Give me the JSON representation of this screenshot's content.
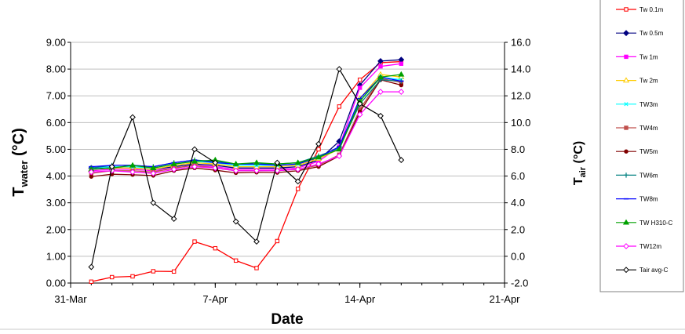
{
  "chart_data": {
    "type": "line",
    "xlabel": "Date",
    "ylabel_left": {
      "main": "T",
      "sub": "water",
      "rest": " (°C)"
    },
    "ylabel_right": {
      "main": "T",
      "sub": "air",
      "rest": " (°C)"
    },
    "x_ticks": [
      {
        "label": "31-Mar",
        "day": 0
      },
      {
        "label": "7-Apr",
        "day": 7
      },
      {
        "label": "14-Apr",
        "day": 14
      },
      {
        "label": "21-Apr",
        "day": 21
      }
    ],
    "xlim_days": [
      0,
      21
    ],
    "ylim_left": [
      0,
      9
    ],
    "yticks_left": [
      "0.00",
      "1.00",
      "2.00",
      "3.00",
      "4.00",
      "5.00",
      "6.00",
      "7.00",
      "8.00",
      "9.00"
    ],
    "ylim_right": [
      -2,
      16
    ],
    "yticks_right": [
      "-2.0",
      "0.0",
      "2.0",
      "4.0",
      "6.0",
      "8.0",
      "10.0",
      "12.0",
      "14.0",
      "16.0"
    ],
    "grid": "horizontal major gridlines",
    "legend_position": "right",
    "series": [
      {
        "name": "Tw 0.1m",
        "color": "#ff0000",
        "marker": "square-open",
        "axis": "left",
        "values": [
          0.05,
          0.22,
          0.25,
          0.44,
          0.43,
          1.55,
          1.3,
          0.84,
          0.56,
          1.57,
          3.52,
          5.0,
          6.6,
          7.6,
          8.24,
          8.28
        ]
      },
      {
        "name": "Tw 0.5m",
        "color": "#000080",
        "marker": "diamond",
        "axis": "left",
        "values": [
          4.3,
          4.3,
          4.3,
          4.25,
          4.35,
          4.45,
          4.4,
          4.3,
          4.3,
          4.3,
          4.35,
          4.6,
          5.3,
          7.4,
          8.3,
          8.35
        ]
      },
      {
        "name": "Tw 1m",
        "color": "#ff00ff",
        "marker": "square",
        "axis": "left",
        "values": [
          4.2,
          4.25,
          4.25,
          4.2,
          4.3,
          4.4,
          4.35,
          4.25,
          4.25,
          4.25,
          4.3,
          4.55,
          5.1,
          7.3,
          8.1,
          8.2
        ]
      },
      {
        "name": "Tw 2m",
        "color": "#ffcc00",
        "marker": "triangle-open",
        "axis": "left",
        "values": [
          4.25,
          4.3,
          4.3,
          4.25,
          4.4,
          4.5,
          4.45,
          4.35,
          4.35,
          4.35,
          4.4,
          4.65,
          5.0,
          6.9,
          7.8,
          7.7
        ]
      },
      {
        "name": "TW3m",
        "color": "#00ffff",
        "marker": "x",
        "axis": "left",
        "values": [
          4.3,
          4.35,
          4.35,
          4.3,
          4.45,
          4.55,
          4.5,
          4.4,
          4.4,
          4.4,
          4.45,
          4.7,
          5.0,
          6.8,
          7.7,
          7.6
        ]
      },
      {
        "name": "TW4m",
        "color": "#c0504d",
        "marker": "square",
        "axis": "left",
        "values": [
          4.1,
          4.2,
          4.2,
          4.15,
          4.3,
          4.4,
          4.3,
          4.2,
          4.2,
          4.2,
          4.25,
          4.4,
          4.8,
          6.5,
          7.65,
          7.5
        ]
      },
      {
        "name": "TW5m",
        "color": "#800000",
        "marker": "circle",
        "axis": "left",
        "values": [
          3.98,
          4.07,
          4.05,
          4.02,
          4.2,
          4.3,
          4.22,
          4.12,
          4.14,
          4.13,
          4.2,
          4.35,
          4.75,
          6.4,
          7.6,
          7.4
        ]
      },
      {
        "name": "TW6m",
        "color": "#008080",
        "marker": "plus",
        "axis": "left",
        "values": [
          4.3,
          4.4,
          4.4,
          4.35,
          4.5,
          4.6,
          4.55,
          4.45,
          4.45,
          4.45,
          4.5,
          4.75,
          5.05,
          6.7,
          7.6,
          7.55
        ]
      },
      {
        "name": "TW8m",
        "color": "#0000ff",
        "marker": "dash",
        "axis": "left",
        "values": [
          4.35,
          4.4,
          4.4,
          4.35,
          4.5,
          4.6,
          4.5,
          4.45,
          4.45,
          4.4,
          4.45,
          4.7,
          5.1,
          6.9,
          7.7,
          7.55
        ]
      },
      {
        "name": "TW H310-C",
        "color": "#00a000",
        "marker": "triangle",
        "axis": "left",
        "values": [
          4.25,
          4.3,
          4.4,
          4.3,
          4.45,
          4.55,
          4.6,
          4.45,
          4.5,
          4.45,
          4.5,
          4.7,
          5.0,
          6.8,
          7.7,
          7.8
        ]
      },
      {
        "name": "TW12m",
        "color": "#ff00ff",
        "marker": "diamond-open",
        "axis": "left",
        "values": [
          4.15,
          4.2,
          4.15,
          4.1,
          4.25,
          4.35,
          4.3,
          4.2,
          4.2,
          4.2,
          4.25,
          4.45,
          4.75,
          6.3,
          7.15,
          7.15
        ]
      },
      {
        "name": "Tair avg-C",
        "color": "#000000",
        "marker": "diamond-open",
        "axis": "right",
        "values": [
          -0.8,
          6.7,
          10.4,
          4.0,
          2.8,
          8.0,
          7.0,
          2.6,
          1.1,
          7.0,
          5.6,
          8.4,
          14.0,
          11.4,
          10.5,
          7.2
        ]
      }
    ]
  }
}
